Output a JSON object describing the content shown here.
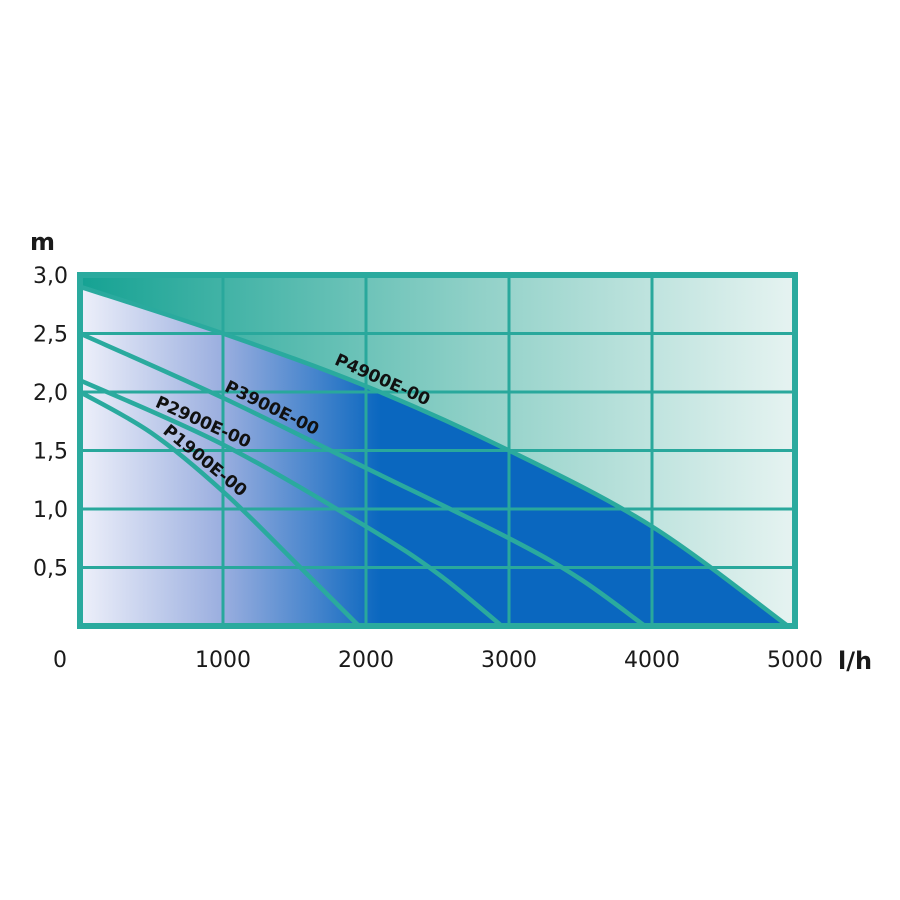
{
  "chart_data": {
    "type": "line",
    "xlabel": "l/h",
    "ylabel": "m",
    "xlim": [
      0,
      5000
    ],
    "ylim": [
      0,
      3.0
    ],
    "x_tick_labels": [
      "0",
      "1000",
      "2000",
      "3000",
      "4000",
      "5000"
    ],
    "x_ticks": [
      0,
      1000,
      2000,
      3000,
      4000,
      5000
    ],
    "y_tick_labels": [
      "0,5",
      "1,0",
      "1,5",
      "2,0",
      "2,5",
      "3,0"
    ],
    "y_ticks": [
      0.5,
      1.0,
      1.5,
      2.0,
      2.5,
      3.0
    ],
    "grid": true,
    "series": [
      {
        "name": "P1900E-00",
        "x": [
          0,
          500,
          1000,
          1500,
          1950
        ],
        "y": [
          2.0,
          1.65,
          1.15,
          0.55,
          0
        ]
      },
      {
        "name": "P2900E-00",
        "x": [
          0,
          1000,
          2000,
          2500,
          2950
        ],
        "y": [
          2.1,
          1.55,
          0.85,
          0.45,
          0
        ]
      },
      {
        "name": "P3900E-00",
        "x": [
          0,
          1000,
          2000,
          3000,
          3500,
          3950
        ],
        "y": [
          2.5,
          1.95,
          1.35,
          0.75,
          0.4,
          0
        ]
      },
      {
        "name": "P4900E-00",
        "x": [
          0,
          1000,
          2000,
          3000,
          4000,
          4950
        ],
        "y": [
          2.9,
          2.5,
          2.05,
          1.5,
          0.85,
          0
        ]
      }
    ],
    "colors": {
      "grid": "#29a89c",
      "frame": "#2aaa9e",
      "fill_light": "#eef0fa",
      "fill_dark": "#0a67bf",
      "area_above_light": "#e6f3f1",
      "area_above_dark": "#15a293"
    }
  }
}
